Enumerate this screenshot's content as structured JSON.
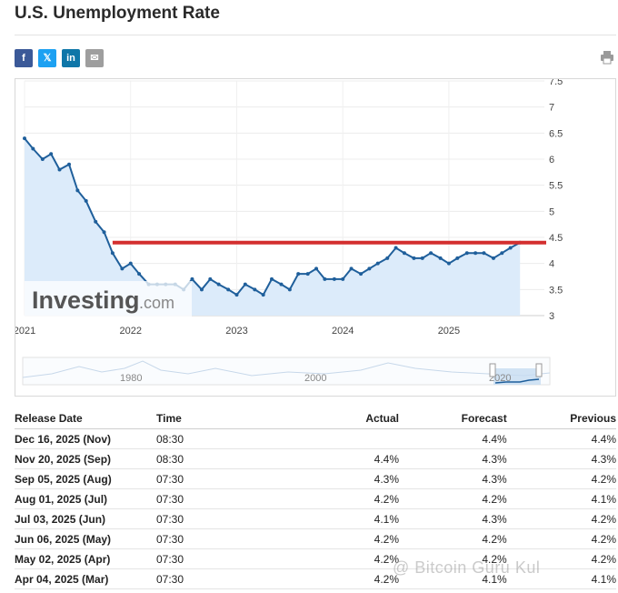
{
  "page": {
    "title": "U.S. Unemployment Rate"
  },
  "share": {
    "facebook": "f",
    "twitter": "𝕏",
    "linkedin": "in",
    "email": "✉"
  },
  "logo": {
    "brand": "Investing",
    "suffix": ".com"
  },
  "watermark": "@ Bitcoin Guru Kul",
  "colors": {
    "line": "#1f5f9b",
    "area": "#dcebfa",
    "threshold": "#d32f2f",
    "up": "#d32f2f",
    "down": "#2e9d3e"
  },
  "chart_data": {
    "type": "line",
    "title": "",
    "xlabel": "",
    "ylabel": "",
    "ylim": [
      3,
      7.5
    ],
    "xlim": [
      2021.0,
      2025.9
    ],
    "yticks": [
      "3",
      "3.5",
      "4",
      "4.5",
      "5",
      "5.5",
      "6",
      "6.5",
      "7",
      "7.5"
    ],
    "xticks": [
      "2021",
      "2022",
      "2023",
      "2024",
      "2025"
    ],
    "grid": true,
    "series": [
      {
        "values": [
          [
            2021.0,
            6.4
          ],
          [
            2021.08,
            6.2
          ],
          [
            2021.17,
            6.0
          ],
          [
            2021.25,
            6.1
          ],
          [
            2021.33,
            5.8
          ],
          [
            2021.42,
            5.9
          ],
          [
            2021.5,
            5.4
          ],
          [
            2021.58,
            5.2
          ],
          [
            2021.67,
            4.8
          ],
          [
            2021.75,
            4.6
          ],
          [
            2021.83,
            4.2
          ],
          [
            2021.92,
            3.9
          ],
          [
            2022.0,
            4.0
          ],
          [
            2022.08,
            3.8
          ],
          [
            2022.17,
            3.6
          ],
          [
            2022.25,
            3.6
          ],
          [
            2022.33,
            3.6
          ],
          [
            2022.42,
            3.6
          ],
          [
            2022.5,
            3.5
          ],
          [
            2022.58,
            3.7
          ],
          [
            2022.67,
            3.5
          ],
          [
            2022.75,
            3.7
          ],
          [
            2022.83,
            3.6
          ],
          [
            2022.92,
            3.5
          ],
          [
            2023.0,
            3.4
          ],
          [
            2023.08,
            3.6
          ],
          [
            2023.17,
            3.5
          ],
          [
            2023.25,
            3.4
          ],
          [
            2023.33,
            3.7
          ],
          [
            2023.42,
            3.6
          ],
          [
            2023.5,
            3.5
          ],
          [
            2023.58,
            3.8
          ],
          [
            2023.67,
            3.8
          ],
          [
            2023.75,
            3.9
          ],
          [
            2023.83,
            3.7
          ],
          [
            2023.92,
            3.7
          ],
          [
            2024.0,
            3.7
          ],
          [
            2024.08,
            3.9
          ],
          [
            2024.17,
            3.8
          ],
          [
            2024.25,
            3.9
          ],
          [
            2024.33,
            4.0
          ],
          [
            2024.42,
            4.1
          ],
          [
            2024.5,
            4.3
          ],
          [
            2024.58,
            4.2
          ],
          [
            2024.67,
            4.1
          ],
          [
            2024.75,
            4.1
          ],
          [
            2024.83,
            4.2
          ],
          [
            2024.92,
            4.1
          ],
          [
            2025.0,
            4.0
          ],
          [
            2025.08,
            4.1
          ],
          [
            2025.17,
            4.2
          ],
          [
            2025.25,
            4.2
          ],
          [
            2025.33,
            4.2
          ],
          [
            2025.42,
            4.1
          ],
          [
            2025.5,
            4.2
          ],
          [
            2025.58,
            4.3
          ],
          [
            2025.67,
            4.4
          ]
        ]
      }
    ],
    "threshold": 4.4,
    "navigator": {
      "labels": [
        "1980",
        "2000",
        "2020"
      ]
    }
  },
  "table": {
    "headers": {
      "date": "Release Date",
      "time": "Time",
      "actual": "Actual",
      "forecast": "Forecast",
      "previous": "Previous"
    },
    "rows": [
      {
        "date": "Dec 16, 2025 (Nov)",
        "time": "08:30",
        "actual": "",
        "forecast": "4.4%",
        "previous": "4.4%",
        "status": ""
      },
      {
        "date": "Nov 20, 2025 (Sep)",
        "time": "08:30",
        "actual": "4.4%",
        "forecast": "4.3%",
        "previous": "4.3%",
        "status": "red"
      },
      {
        "date": "Sep 05, 2025 (Aug)",
        "time": "07:30",
        "actual": "4.3%",
        "forecast": "4.3%",
        "previous": "4.2%",
        "status": ""
      },
      {
        "date": "Aug 01, 2025 (Jul)",
        "time": "07:30",
        "actual": "4.2%",
        "forecast": "4.2%",
        "previous": "4.1%",
        "status": ""
      },
      {
        "date": "Jul 03, 2025 (Jun)",
        "time": "07:30",
        "actual": "4.1%",
        "forecast": "4.3%",
        "previous": "4.2%",
        "status": "green"
      },
      {
        "date": "Jun 06, 2025 (May)",
        "time": "07:30",
        "actual": "4.2%",
        "forecast": "4.2%",
        "previous": "4.2%",
        "status": ""
      },
      {
        "date": "May 02, 2025 (Apr)",
        "time": "07:30",
        "actual": "4.2%",
        "forecast": "4.2%",
        "previous": "4.2%",
        "status": ""
      },
      {
        "date": "Apr 04, 2025 (Mar)",
        "time": "07:30",
        "actual": "4.2%",
        "forecast": "4.1%",
        "previous": "4.1%",
        "status": "red"
      }
    ]
  }
}
